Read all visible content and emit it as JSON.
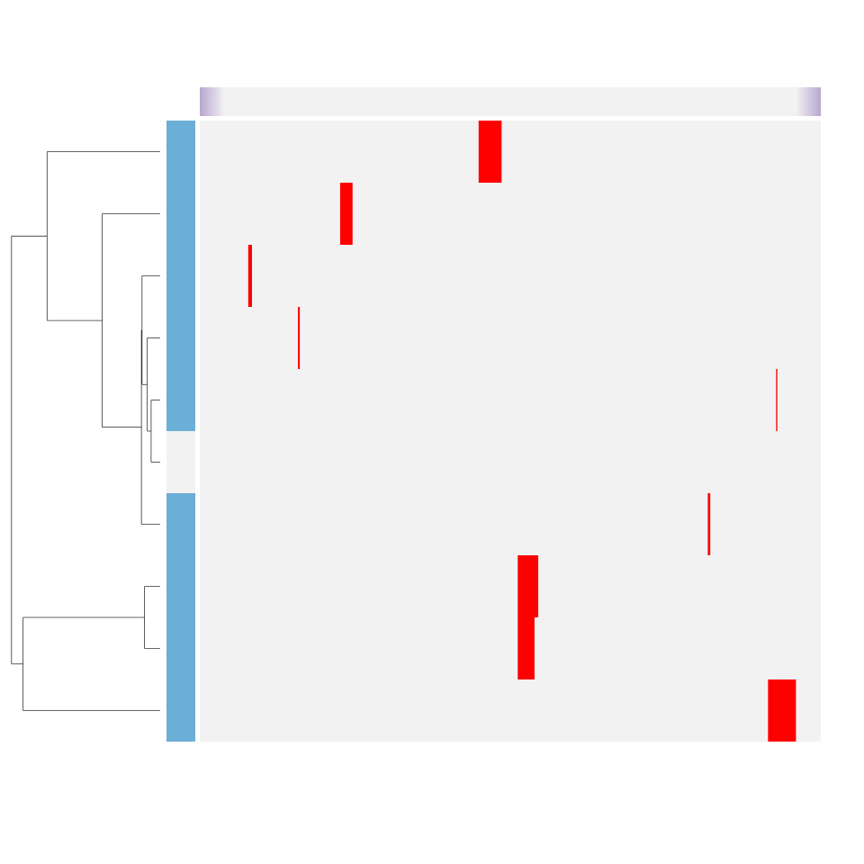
{
  "chart_data": {
    "type": "heatmap",
    "title": "",
    "xlabel": "",
    "ylabel": "",
    "legend": "none",
    "background_color": "#f2f2f2",
    "highlight_color": "#ff0000",
    "row_annotation": {
      "colors": {
        "A": "#6baed6",
        "B": "#f2f2f2"
      },
      "values": [
        "A",
        "A",
        "A",
        "A",
        "A",
        "B",
        "A",
        "A",
        "A",
        "A"
      ]
    },
    "column_annotation": {
      "gradient": [
        "#b8a6d0",
        "#f2f2f2",
        "#f2f2f2",
        "#b8a6d0"
      ]
    },
    "x_range": [
      0,
      1
    ],
    "cells": [
      {
        "row": 0,
        "x_start": 0.449,
        "x_end": 0.486
      },
      {
        "row": 1,
        "x_start": 0.226,
        "x_end": 0.246
      },
      {
        "row": 2,
        "x_start": 0.078,
        "x_end": 0.084
      },
      {
        "row": 3,
        "x_start": 0.158,
        "x_end": 0.161
      },
      {
        "row": 4,
        "x_start": 0.928,
        "x_end": 0.93
      },
      {
        "row": 6,
        "x_start": 0.818,
        "x_end": 0.822
      },
      {
        "row": 7,
        "x_start": 0.512,
        "x_end": 0.545
      },
      {
        "row": 8,
        "x_start": 0.512,
        "x_end": 0.539
      },
      {
        "row": 9,
        "x_start": 0.915,
        "x_end": 0.96
      }
    ],
    "row_dendrogram": {
      "leaf_count": 10,
      "max_height": 1.0,
      "merges": [
        {
          "left": "L4",
          "right": "L5",
          "height": 0.059
        },
        {
          "left": "L3",
          "right": "N0",
          "height": 0.084
        },
        {
          "left": "L2",
          "right": "N1",
          "height": 0.118
        },
        {
          "left": "N2",
          "right": "L6",
          "height": 0.122
        },
        {
          "left": "L7",
          "right": "L8",
          "height": 0.102
        },
        {
          "left": "L1",
          "right": "N3",
          "height": 0.377
        },
        {
          "left": "L0",
          "right": "N5",
          "height": 0.735
        },
        {
          "left": "N4",
          "right": "L9",
          "height": 0.891
        },
        {
          "left": "N6",
          "right": "N7",
          "height": 0.966
        }
      ]
    }
  }
}
